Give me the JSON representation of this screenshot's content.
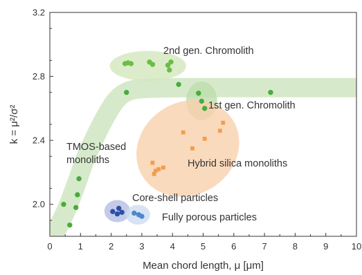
{
  "chart_data": {
    "type": "scatter",
    "title": "",
    "xlabel": "Mean chord length, μ   [μm]",
    "ylabel": "k = μ²/σ²",
    "xlim": [
      0,
      10
    ],
    "ylim": [
      1.8,
      3.2
    ],
    "xticks": [
      "0",
      "1",
      "2",
      "3",
      "4",
      "5",
      "6",
      "7",
      "8",
      "9",
      "10"
    ],
    "yticks": [
      "2.0",
      "2.4",
      "2.8",
      "3.2"
    ],
    "grid": false,
    "legend": "none",
    "trend_band": {
      "color": "#cfe6c2",
      "x": [
        0.25,
        0.55,
        0.85,
        1.15,
        1.5,
        1.85,
        2.2,
        2.6,
        3.2,
        4.5,
        6.5,
        10
      ],
      "y": [
        1.85,
        1.97,
        2.12,
        2.28,
        2.43,
        2.56,
        2.66,
        2.71,
        2.725,
        2.73,
        2.73,
        2.73
      ]
    },
    "series": [
      {
        "label": "2nd gen. Chromolith",
        "marker": "circle",
        "color": "#6cbd45",
        "highlight": "#d2e7bd",
        "points": [
          [
            2.45,
            2.88
          ],
          [
            2.55,
            2.885
          ],
          [
            2.65,
            2.88
          ],
          [
            3.25,
            2.89
          ],
          [
            3.35,
            2.875
          ],
          [
            3.85,
            2.87
          ],
          [
            3.9,
            2.84
          ],
          [
            3.95,
            2.89
          ]
        ]
      },
      {
        "label": "1st gen. Chromolith",
        "marker": "circle",
        "color": "#4aab3c",
        "highlight": "#bcdcaa",
        "points": [
          [
            4.85,
            2.695
          ],
          [
            4.95,
            2.645
          ],
          [
            5.05,
            2.6
          ]
        ]
      },
      {
        "label": "TMOS-based\nmonoliths",
        "marker": "circle",
        "color": "#4aab3c",
        "highlight": "",
        "points": [
          [
            0.45,
            2.0
          ],
          [
            0.65,
            1.87
          ],
          [
            0.85,
            1.98
          ],
          [
            0.9,
            2.06
          ],
          [
            0.95,
            2.16
          ],
          [
            2.5,
            2.7
          ],
          [
            4.2,
            2.75
          ],
          [
            7.2,
            2.7
          ]
        ]
      },
      {
        "label": "Hybrid silica monoliths",
        "marker": "square",
        "color": "#f29d4c",
        "highlight": "#f8cfaa",
        "points": [
          [
            3.35,
            2.26
          ],
          [
            3.4,
            2.19
          ],
          [
            3.45,
            2.21
          ],
          [
            3.55,
            2.22
          ],
          [
            3.7,
            2.23
          ],
          [
            4.35,
            2.45
          ],
          [
            4.65,
            2.35
          ],
          [
            5.05,
            2.41
          ],
          [
            5.55,
            2.46
          ],
          [
            5.65,
            2.51
          ]
        ]
      },
      {
        "label": "Core-shell particles",
        "marker": "circle",
        "color": "#2d4fa6",
        "highlight": "#b3bde0",
        "points": [
          [
            2.05,
            1.955
          ],
          [
            2.2,
            1.94
          ],
          [
            2.25,
            1.975
          ],
          [
            2.35,
            1.95
          ]
        ]
      },
      {
        "label": "Fully porous particles",
        "marker": "circle",
        "color": "#4f86cf",
        "highlight": "#ccdcf0",
        "points": [
          [
            2.75,
            1.945
          ],
          [
            2.9,
            1.935
          ],
          [
            3.0,
            1.925
          ]
        ]
      }
    ]
  }
}
